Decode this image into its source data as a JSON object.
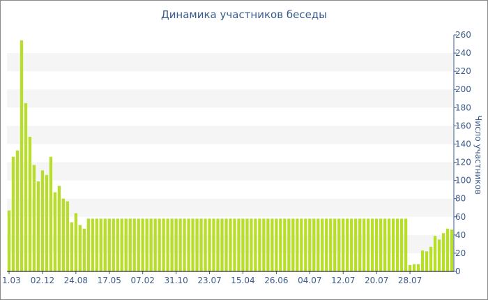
{
  "chart_data": {
    "type": "bar",
    "title": "Динамика участников беседы",
    "xlabel": "",
    "ylabel": "Число участников",
    "ylim": [
      0,
      260
    ],
    "y_ticks": [
      0,
      20,
      40,
      60,
      80,
      100,
      120,
      140,
      160,
      180,
      200,
      220,
      240,
      260
    ],
    "y_axis_side": "right",
    "grid": "alternating horizontal bands",
    "x_tick_labels": [
      "1.03",
      "02.12",
      "24.08",
      "17.05",
      "07.02",
      "31.10",
      "23.07",
      "15.04",
      "26.06",
      "04.07",
      "12.07",
      "20.07",
      "28.07"
    ],
    "bar_color": "#b8de2c",
    "band_color": "#f5f5f5",
    "text_color": "#3a5a8a",
    "values": [
      67,
      126,
      133,
      254,
      185,
      148,
      117,
      99,
      111,
      106,
      126,
      87,
      94,
      80,
      77,
      54,
      64,
      51,
      47,
      58,
      58,
      58,
      58,
      58,
      58,
      58,
      58,
      58,
      58,
      58,
      58,
      58,
      58,
      58,
      58,
      58,
      58,
      58,
      58,
      58,
      58,
      58,
      58,
      58,
      58,
      58,
      58,
      58,
      58,
      58,
      58,
      58,
      58,
      58,
      58,
      58,
      58,
      58,
      58,
      58,
      58,
      58,
      58,
      58,
      58,
      58,
      58,
      58,
      58,
      58,
      58,
      58,
      58,
      58,
      58,
      58,
      58,
      58,
      58,
      58,
      58,
      58,
      58,
      58,
      58,
      58,
      58,
      58,
      58,
      58,
      58,
      58,
      58,
      58,
      58,
      58,
      7,
      8,
      8,
      23,
      22,
      27,
      39,
      35,
      42,
      47,
      46
    ]
  }
}
